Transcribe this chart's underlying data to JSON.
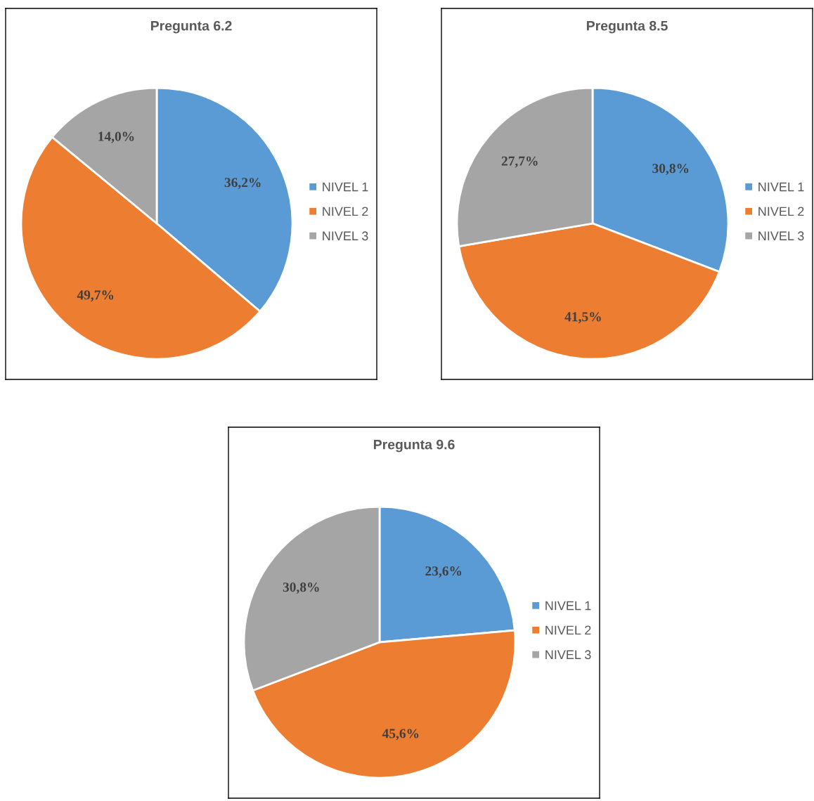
{
  "chart_data": [
    {
      "type": "pie",
      "title": "Pregunta 6.2",
      "categories": [
        "NIVEL 1",
        "NIVEL 2",
        "NIVEL 3"
      ],
      "values": [
        36.2,
        49.7,
        14.0
      ],
      "colors": [
        "#5b9bd5",
        "#ed7d31",
        "#a5a5a5"
      ],
      "value_labels": [
        "36,2%",
        "49,7%",
        "14,0%"
      ],
      "legend": "right"
    },
    {
      "type": "pie",
      "title": "Pregunta 8.5",
      "categories": [
        "NIVEL 1",
        "NIVEL 2",
        "NIVEL 3"
      ],
      "values": [
        30.8,
        41.5,
        27.7
      ],
      "colors": [
        "#5b9bd5",
        "#ed7d31",
        "#a5a5a5"
      ],
      "value_labels": [
        "30,8%",
        "41,5%",
        "27,7%"
      ],
      "legend": "right"
    },
    {
      "type": "pie",
      "title": "Pregunta 9.6",
      "categories": [
        "NIVEL 1",
        "NIVEL 2",
        "NIVEL 3"
      ],
      "values": [
        23.6,
        45.6,
        30.8
      ],
      "colors": [
        "#5b9bd5",
        "#ed7d31",
        "#a5a5a5"
      ],
      "value_labels": [
        "23,6%",
        "45,6%",
        "30,8%"
      ],
      "legend": "right"
    }
  ]
}
